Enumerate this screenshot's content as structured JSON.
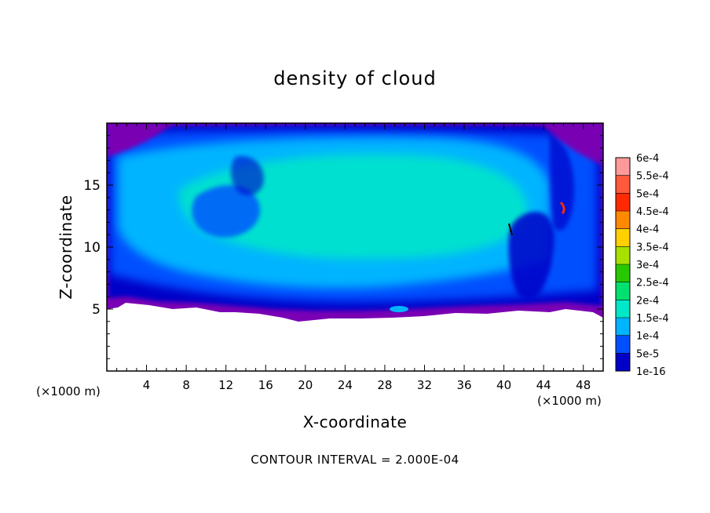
{
  "chart_data": {
    "type": "heatmap",
    "title": "density of cloud",
    "xlabel": "X-coordinate",
    "ylabel": "Z-coordinate",
    "x_unit": "(×1000 m)",
    "x_unit_right": "(×1000 m)",
    "xlim": [
      0,
      50
    ],
    "ylim": [
      0,
      20
    ],
    "x_ticks": [
      4,
      8,
      12,
      16,
      20,
      24,
      28,
      32,
      36,
      40,
      44,
      48
    ],
    "y_ticks": [
      5,
      10,
      15
    ],
    "footer": "CONTOUR INTERVAL = 2.000E-04",
    "colorbar": {
      "labels": [
        "6e-4",
        "5.5e-4",
        "5e-4",
        "4.5e-4",
        "4e-4",
        "3.5e-4",
        "3e-4",
        "2.5e-4",
        "2e-4",
        "1.5e-4",
        "1e-4",
        "5e-5",
        "1e-16"
      ],
      "colors": [
        "#ff9a9a",
        "#ff5a3c",
        "#ff2a00",
        "#ff8a00",
        "#ffd000",
        "#a8e000",
        "#28c800",
        "#00e070",
        "#00e8c8",
        "#00b4ff",
        "#0050ff",
        "#0000c8",
        "#7a00b4"
      ]
    },
    "cloud_base_km": 4.5,
    "cloud_top_km": 20,
    "dominant_value_range": [
      "5e-5",
      "2e-4"
    ]
  }
}
